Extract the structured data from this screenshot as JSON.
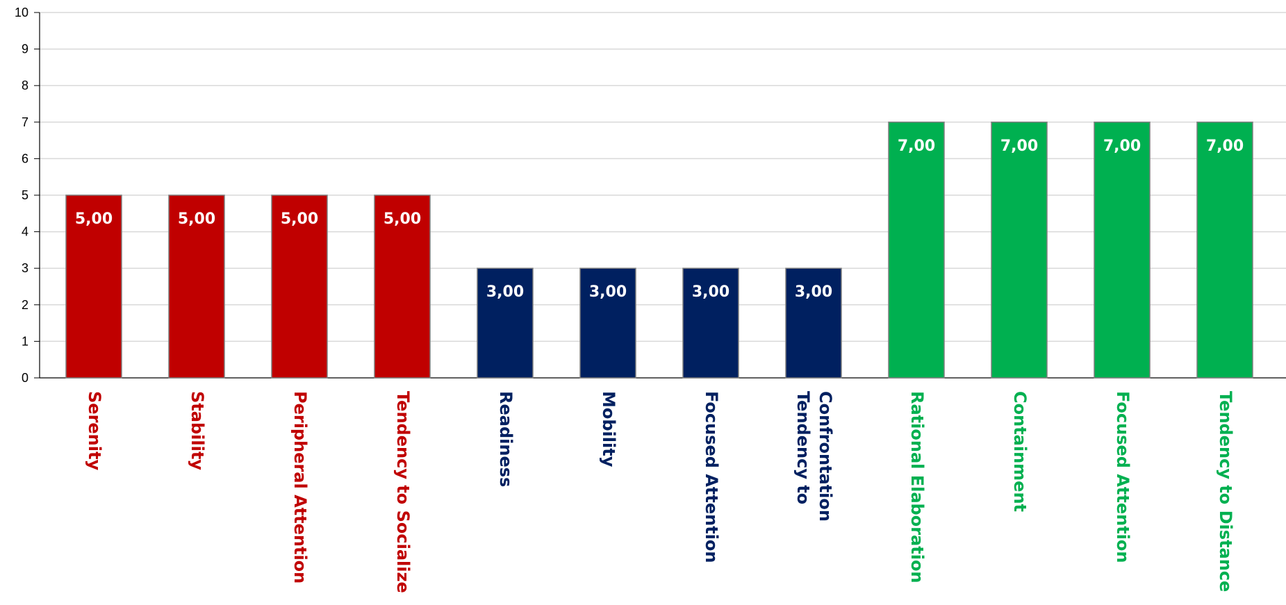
{
  "chart_data": {
    "type": "bar",
    "categories": [
      "Serenity",
      "Stability",
      "Peripheral Attention",
      "Tendency to Socialize",
      "Readiness",
      "Mobility",
      "Focused Attention",
      "Tendency to Confrontation",
      "Rational Elaboration",
      "Containment",
      "Focused Attention",
      "Tendency to Distance"
    ],
    "category_lines": [
      [
        "Serenity"
      ],
      [
        "Stability"
      ],
      [
        "Peripheral Attention"
      ],
      [
        "Tendency to Socialize"
      ],
      [
        "Readiness"
      ],
      [
        "Mobility"
      ],
      [
        "Focused Attention"
      ],
      [
        "Tendency to",
        "Confrontation"
      ],
      [
        "Rational Elaboration"
      ],
      [
        "Containment"
      ],
      [
        "Focused Attention"
      ],
      [
        "Tendency to Distance"
      ]
    ],
    "values": [
      5,
      5,
      5,
      5,
      3,
      3,
      3,
      3,
      7,
      7,
      7,
      7
    ],
    "data_labels": [
      "5,00",
      "5,00",
      "5,00",
      "5,00",
      "3,00",
      "3,00",
      "3,00",
      "3,00",
      "7,00",
      "7,00",
      "7,00",
      "7,00"
    ],
    "colors": [
      "#C00000",
      "#C00000",
      "#C00000",
      "#C00000",
      "#002060",
      "#002060",
      "#002060",
      "#002060",
      "#00B050",
      "#00B050",
      "#00B050",
      "#00B050"
    ],
    "ylim": [
      0,
      10
    ],
    "yticks": [
      "0",
      "1",
      "2",
      "3",
      "4",
      "5",
      "6",
      "7",
      "8",
      "9",
      "10"
    ],
    "grid": true,
    "title": "",
    "xlabel": "",
    "ylabel": ""
  }
}
